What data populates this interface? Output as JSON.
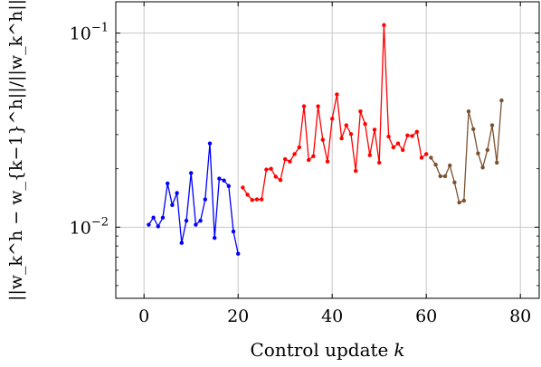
{
  "chart_data": {
    "type": "line",
    "xlabel": "Control update",
    "xlabel_var": "k",
    "ylabel": "||w_k^h − w_{k−1}^h||/||w_k^h||",
    "yscale": "log",
    "xlim": [
      -6,
      84
    ],
    "ylim": [
      0.0043,
      0.145
    ],
    "xticks": [
      0,
      20,
      40,
      60,
      80
    ],
    "yticks": [
      {
        "value": 0.01,
        "base": "10",
        "exp": "−2"
      },
      {
        "value": 0.1,
        "base": "10",
        "exp": "−1"
      }
    ],
    "grid": true,
    "legend": false,
    "series": [
      {
        "color": "#0000ff",
        "x": [
          1,
          2,
          3,
          4,
          5,
          6,
          7,
          8,
          9,
          10,
          11,
          12,
          13,
          14,
          15,
          16,
          17,
          18,
          19,
          20
        ],
        "y": [
          0.0103,
          0.0112,
          0.0101,
          0.0112,
          0.0168,
          0.013,
          0.015,
          0.0083,
          0.0108,
          0.019,
          0.0103,
          0.0108,
          0.0139,
          0.027,
          0.0088,
          0.0178,
          0.0174,
          0.0163,
          0.0095,
          0.0073
        ]
      },
      {
        "color": "#ff0000",
        "x": [
          21,
          22,
          23,
          24,
          25,
          26,
          27,
          28,
          29,
          30,
          31,
          32,
          33,
          34,
          35,
          36,
          37,
          38,
          39,
          40,
          41,
          42,
          43,
          44,
          45,
          46,
          47,
          48,
          49,
          50,
          51,
          52,
          53,
          54,
          55,
          56,
          57,
          58,
          59,
          60
        ],
        "y": [
          0.016,
          0.0147,
          0.0138,
          0.0139,
          0.0139,
          0.0198,
          0.02,
          0.0182,
          0.0175,
          0.0224,
          0.0218,
          0.0238,
          0.0258,
          0.042,
          0.0222,
          0.0232,
          0.042,
          0.0282,
          0.0218,
          0.0362,
          0.0483,
          0.0287,
          0.0335,
          0.0302,
          0.0195,
          0.0395,
          0.034,
          0.0235,
          0.0318,
          0.0215,
          0.11,
          0.0293,
          0.0258,
          0.027,
          0.025,
          0.0297,
          0.0295,
          0.031,
          0.0228,
          0.0238
        ]
      },
      {
        "color": "#7a5230",
        "x": [
          61,
          62,
          63,
          64,
          65,
          66,
          67,
          68,
          69,
          70,
          71,
          72,
          73,
          74,
          75,
          76
        ],
        "y": [
          0.0228,
          0.021,
          0.0183,
          0.0183,
          0.0208,
          0.017,
          0.0134,
          0.0137,
          0.0395,
          0.032,
          0.024,
          0.0203,
          0.025,
          0.0335,
          0.0215,
          0.045
        ]
      }
    ]
  }
}
